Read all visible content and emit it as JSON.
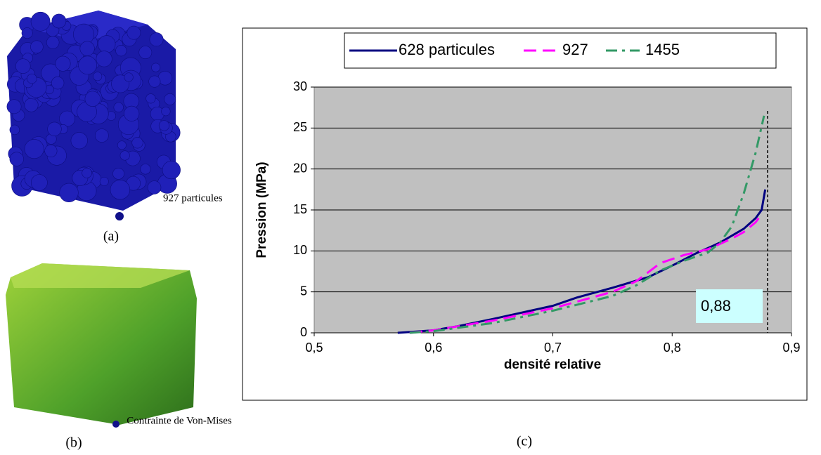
{
  "figure": {
    "label_a": "(a)",
    "note_a": "927 particules",
    "label_b": "(b)",
    "note_b": "Contrainte de Von-Mises",
    "label_c": "(c)"
  },
  "chart_data": {
    "type": "line",
    "xlabel": "densité relative",
    "ylabel": "Pression (MPa)",
    "xlim": [
      0.5,
      0.9
    ],
    "ylim": [
      0,
      30
    ],
    "xticks": [
      {
        "value": 0.5,
        "label": "0,5"
      },
      {
        "value": 0.6,
        "label": "0,6"
      },
      {
        "value": 0.7,
        "label": "0,7"
      },
      {
        "value": 0.8,
        "label": "0,8"
      },
      {
        "value": 0.9,
        "label": "0,9"
      }
    ],
    "yticks": [
      0,
      5,
      10,
      15,
      20,
      25,
      30
    ],
    "grid": true,
    "legend": "top",
    "annotation": {
      "value": 0.88,
      "label": "0,88"
    },
    "series": [
      {
        "name": "628 particules",
        "color": "#000080",
        "style": "solid",
        "x": [
          0.57,
          0.6,
          0.62,
          0.65,
          0.7,
          0.72,
          0.75,
          0.78,
          0.8,
          0.82,
          0.84,
          0.86,
          0.87,
          0.875,
          0.878
        ],
        "values": [
          0,
          0.3,
          0.8,
          1.7,
          3.3,
          4.3,
          5.5,
          6.8,
          8.2,
          9.7,
          11,
          12.7,
          14,
          15,
          17.5
        ]
      },
      {
        "name": "927",
        "color": "#ff00ff",
        "style": "dash",
        "x": [
          0.58,
          0.6,
          0.65,
          0.7,
          0.75,
          0.77,
          0.79,
          0.81,
          0.83,
          0.85,
          0.86,
          0.87,
          0.875
        ],
        "values": [
          0,
          0.3,
          1.5,
          3,
          5,
          6.3,
          8.5,
          9.5,
          10.2,
          11.5,
          12.3,
          13.5,
          14.5
        ]
      },
      {
        "name": "1455",
        "color": "#339966",
        "style": "dashdot",
        "x": [
          0.58,
          0.6,
          0.65,
          0.7,
          0.75,
          0.77,
          0.79,
          0.81,
          0.83,
          0.84,
          0.85,
          0.86,
          0.87,
          0.877
        ],
        "values": [
          0,
          0.2,
          1.2,
          2.7,
          4.5,
          5.8,
          7.6,
          8.8,
          9.8,
          11,
          13,
          17,
          22,
          26.5
        ]
      }
    ]
  }
}
